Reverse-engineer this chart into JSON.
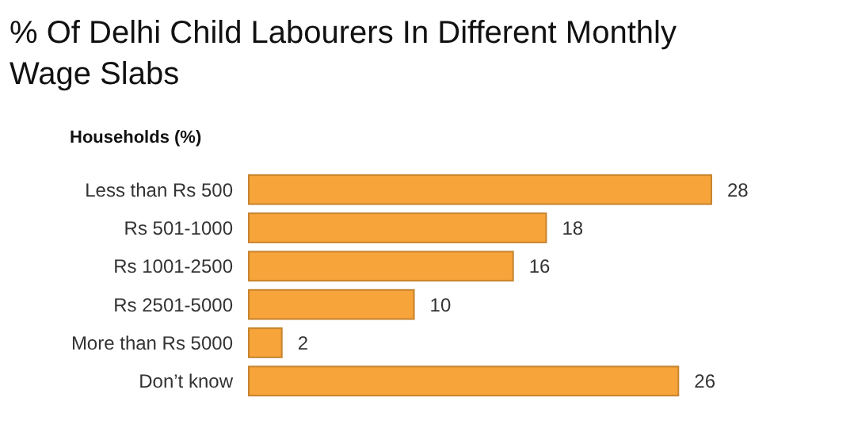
{
  "chart_data": {
    "type": "bar",
    "orientation": "horizontal",
    "title": "% Of Delhi Child Labourers In Different Monthly Wage Slabs",
    "xlabel": "Households (%)",
    "categories": [
      "Less than Rs 500",
      "Rs 501-1000",
      "Rs 1001-2500",
      "Rs 2501-5000",
      "More than Rs 5000",
      "Don’t know"
    ],
    "values": [
      28,
      18,
      16,
      10,
      2,
      26
    ],
    "color": "#f7a43a",
    "data_labels": true
  }
}
